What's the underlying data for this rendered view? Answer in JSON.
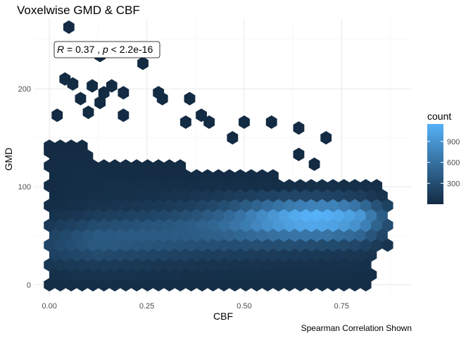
{
  "chart_data": {
    "type": "hexbin",
    "title": "Voxelwise GMD & CBF",
    "xlabel": "CBF",
    "ylabel": "GMD",
    "caption": "Spearman Correlation Shown",
    "annotation": {
      "r_label": "R",
      "r_value": " = 0.37 , ",
      "p_label": "p",
      "p_value": " < 2.2e-16"
    },
    "xlim": [
      -0.04,
      0.93
    ],
    "ylim": [
      -12,
      272
    ],
    "x_ticks": [
      0.0,
      0.25,
      0.5,
      0.75
    ],
    "x_tick_labels": [
      "0.00",
      "0.25",
      "0.50",
      "0.75"
    ],
    "y_ticks": [
      0,
      100,
      200
    ],
    "y_tick_labels": [
      "0",
      "100",
      "200"
    ],
    "grid": true,
    "legend": {
      "title": "count",
      "position": "right",
      "ticks": [
        300,
        600,
        900
      ],
      "tick_labels": [
        "300",
        "600",
        "900"
      ],
      "range": [
        1,
        1150
      ],
      "color_low": "#132B43",
      "color_high": "#56B1F7"
    },
    "density_model": {
      "x_extent": [
        0.0,
        0.88
      ],
      "ridge_gmd_at_cbf0": 42,
      "ridge_slope": 32,
      "peak_cbf": 0.68,
      "peak_gmd": 68,
      "peak_count": 1150
    },
    "outlier_bins": [
      {
        "x": 0.05,
        "y": 263,
        "count": 1
      },
      {
        "x": 0.13,
        "y": 234,
        "count": 1
      },
      {
        "x": 0.24,
        "y": 226,
        "count": 1
      },
      {
        "x": 0.04,
        "y": 210,
        "count": 1
      },
      {
        "x": 0.06,
        "y": 205,
        "count": 1
      },
      {
        "x": 0.11,
        "y": 203,
        "count": 1
      },
      {
        "x": 0.16,
        "y": 203,
        "count": 2
      },
      {
        "x": 0.14,
        "y": 196,
        "count": 2
      },
      {
        "x": 0.19,
        "y": 196,
        "count": 1
      },
      {
        "x": 0.28,
        "y": 196,
        "count": 1
      },
      {
        "x": 0.08,
        "y": 190,
        "count": 1
      },
      {
        "x": 0.13,
        "y": 186,
        "count": 1
      },
      {
        "x": 0.29,
        "y": 190,
        "count": 1
      },
      {
        "x": 0.36,
        "y": 190,
        "count": 1
      },
      {
        "x": 0.02,
        "y": 173,
        "count": 1
      },
      {
        "x": 0.1,
        "y": 176,
        "count": 1
      },
      {
        "x": 0.19,
        "y": 173,
        "count": 1
      },
      {
        "x": 0.39,
        "y": 173,
        "count": 1
      },
      {
        "x": 0.5,
        "y": 166,
        "count": 1
      },
      {
        "x": 0.57,
        "y": 166,
        "count": 1
      },
      {
        "x": 0.64,
        "y": 160,
        "count": 1
      },
      {
        "x": 0.35,
        "y": 166,
        "count": 1
      },
      {
        "x": 0.41,
        "y": 166,
        "count": 1
      },
      {
        "x": 0.47,
        "y": 150,
        "count": 1
      },
      {
        "x": 0.71,
        "y": 150,
        "count": 1
      },
      {
        "x": 0.64,
        "y": 133,
        "count": 1
      },
      {
        "x": 0.68,
        "y": 123,
        "count": 1
      },
      {
        "x": 0.0,
        "y": 136,
        "count": 1
      }
    ]
  }
}
